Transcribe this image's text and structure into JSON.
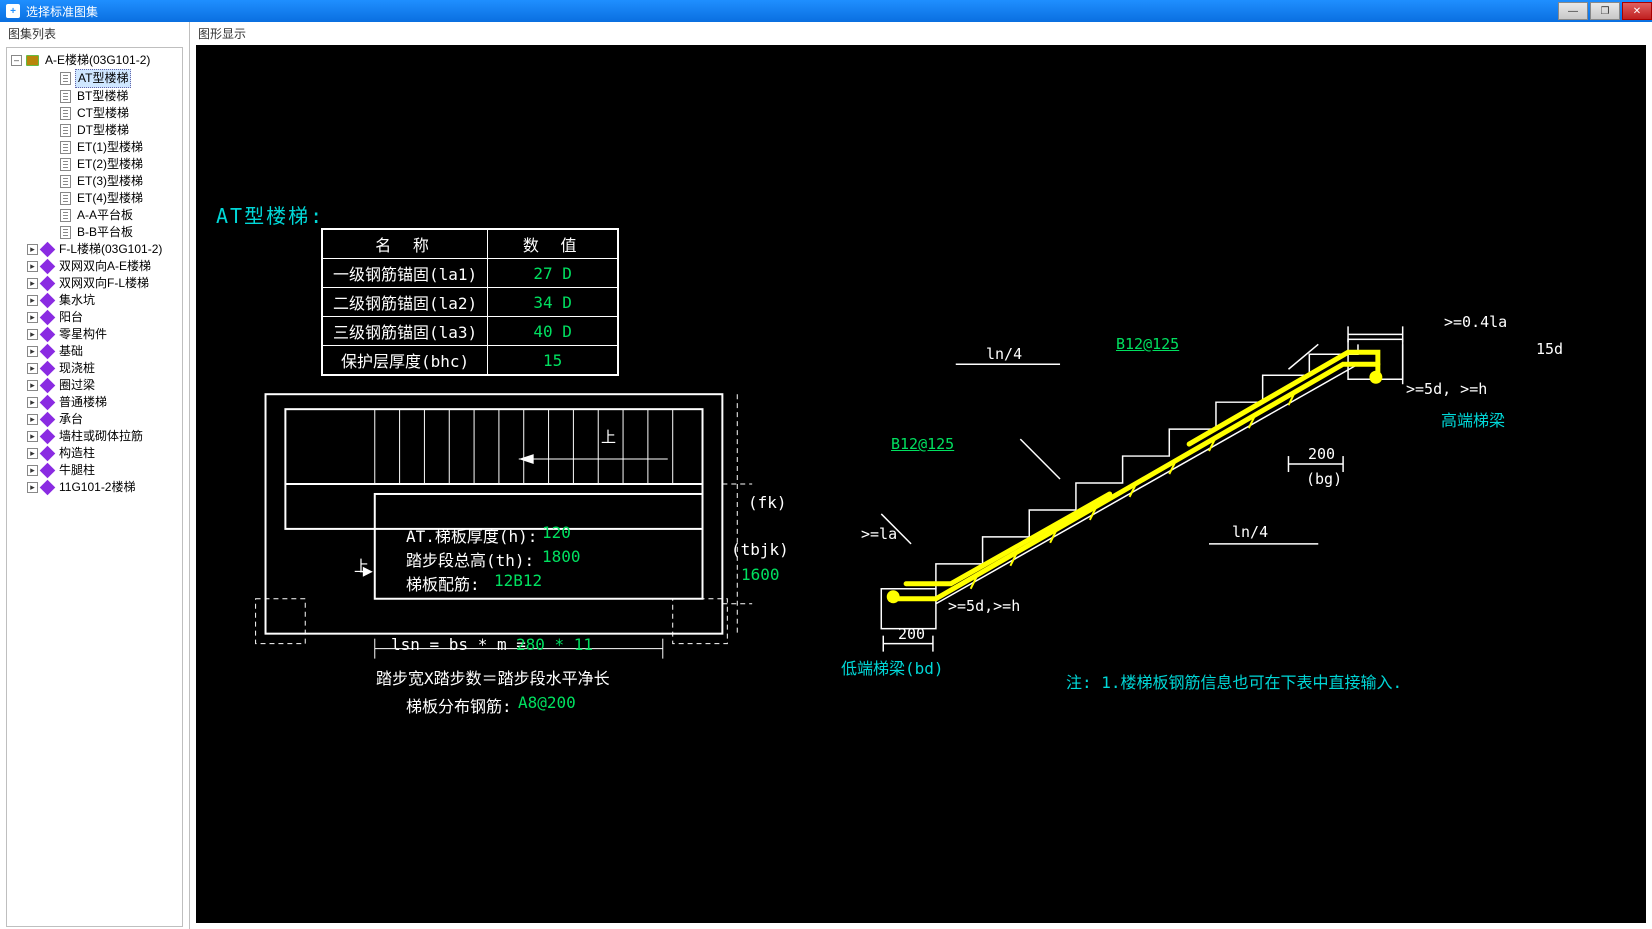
{
  "titlebar": {
    "title": "选择标准图集",
    "app_glyph": "+"
  },
  "winbuttons": {
    "min": "—",
    "max": "❐",
    "close": "✕"
  },
  "sidebar": {
    "header": "图集列表"
  },
  "tree": {
    "root": "A-E楼梯(03G101-2)",
    "children": [
      "AT型楼梯",
      "BT型楼梯",
      "CT型楼梯",
      "DT型楼梯",
      "ET(1)型楼梯",
      "ET(2)型楼梯",
      "ET(3)型楼梯",
      "ET(4)型楼梯",
      "A-A平台板",
      "B-B平台板"
    ],
    "siblings": [
      "F-L楼梯(03G101-2)",
      "双网双向A-E楼梯",
      "双网双向F-L楼梯",
      "集水坑",
      "阳台",
      "零星构件",
      "基础",
      "现浇桩",
      "圈过梁",
      "普通楼梯",
      "承台",
      "墙柱或砌体拉筋",
      "构造柱",
      "牛腿柱",
      "11G101-2楼梯"
    ],
    "selected": "AT型楼梯"
  },
  "mainHeader": "图形显示",
  "drawing": {
    "title": "AT型楼梯:",
    "table": {
      "headers": [
        "名   称",
        "数   值"
      ],
      "rows": [
        [
          "一级钢筋锚固(la1)",
          "27 D"
        ],
        [
          "二级钢筋锚固(la2)",
          "34 D"
        ],
        [
          "三级钢筋锚固(la3)",
          "40 D"
        ],
        [
          "保护层厚度(bhc)",
          "15"
        ]
      ]
    },
    "plan": {
      "label_up": "上",
      "l1": "AT.梯板厚度(h):",
      "v1": "120",
      "l2": "踏步段总高(th):",
      "v2": "1800",
      "l3": "梯板配筋:",
      "v3": "12B12",
      "fk": "(fk)",
      "tbjk": "(tbjk)",
      "tbjk_val": "1600",
      "lsn_l": "lsn = bs * m =",
      "lsn_v": "280 * 11",
      "note1": "踏步宽X踏步数＝踏步段水平净长",
      "dist_l": "梯板分布钢筋:",
      "dist_v": "A8@200"
    },
    "section": {
      "top_dim": ">=0.4la",
      "d15": "15d",
      "r_dim": ">=5d, >=h",
      "high_beam": "高端梯梁",
      "b200_r": "200",
      "bg": "(bg)",
      "ln4_r": "ln/4",
      "ln4_l": "ln/4",
      "b12u": "B12@125",
      "b12l": "B12@125",
      "la": ">=la",
      "l_dim": ">=5d,>=h",
      "b200_l": "200",
      "low_beam": "低端梯梁(bd)",
      "note": "注: 1.楼梯板钢筋信息也可在下表中直接输入."
    },
    "colors": {
      "cyan": "#00d7d7",
      "green": "#00e060",
      "yellow": "#ffff00",
      "white": "#ffffff",
      "black": "#000000"
    }
  }
}
